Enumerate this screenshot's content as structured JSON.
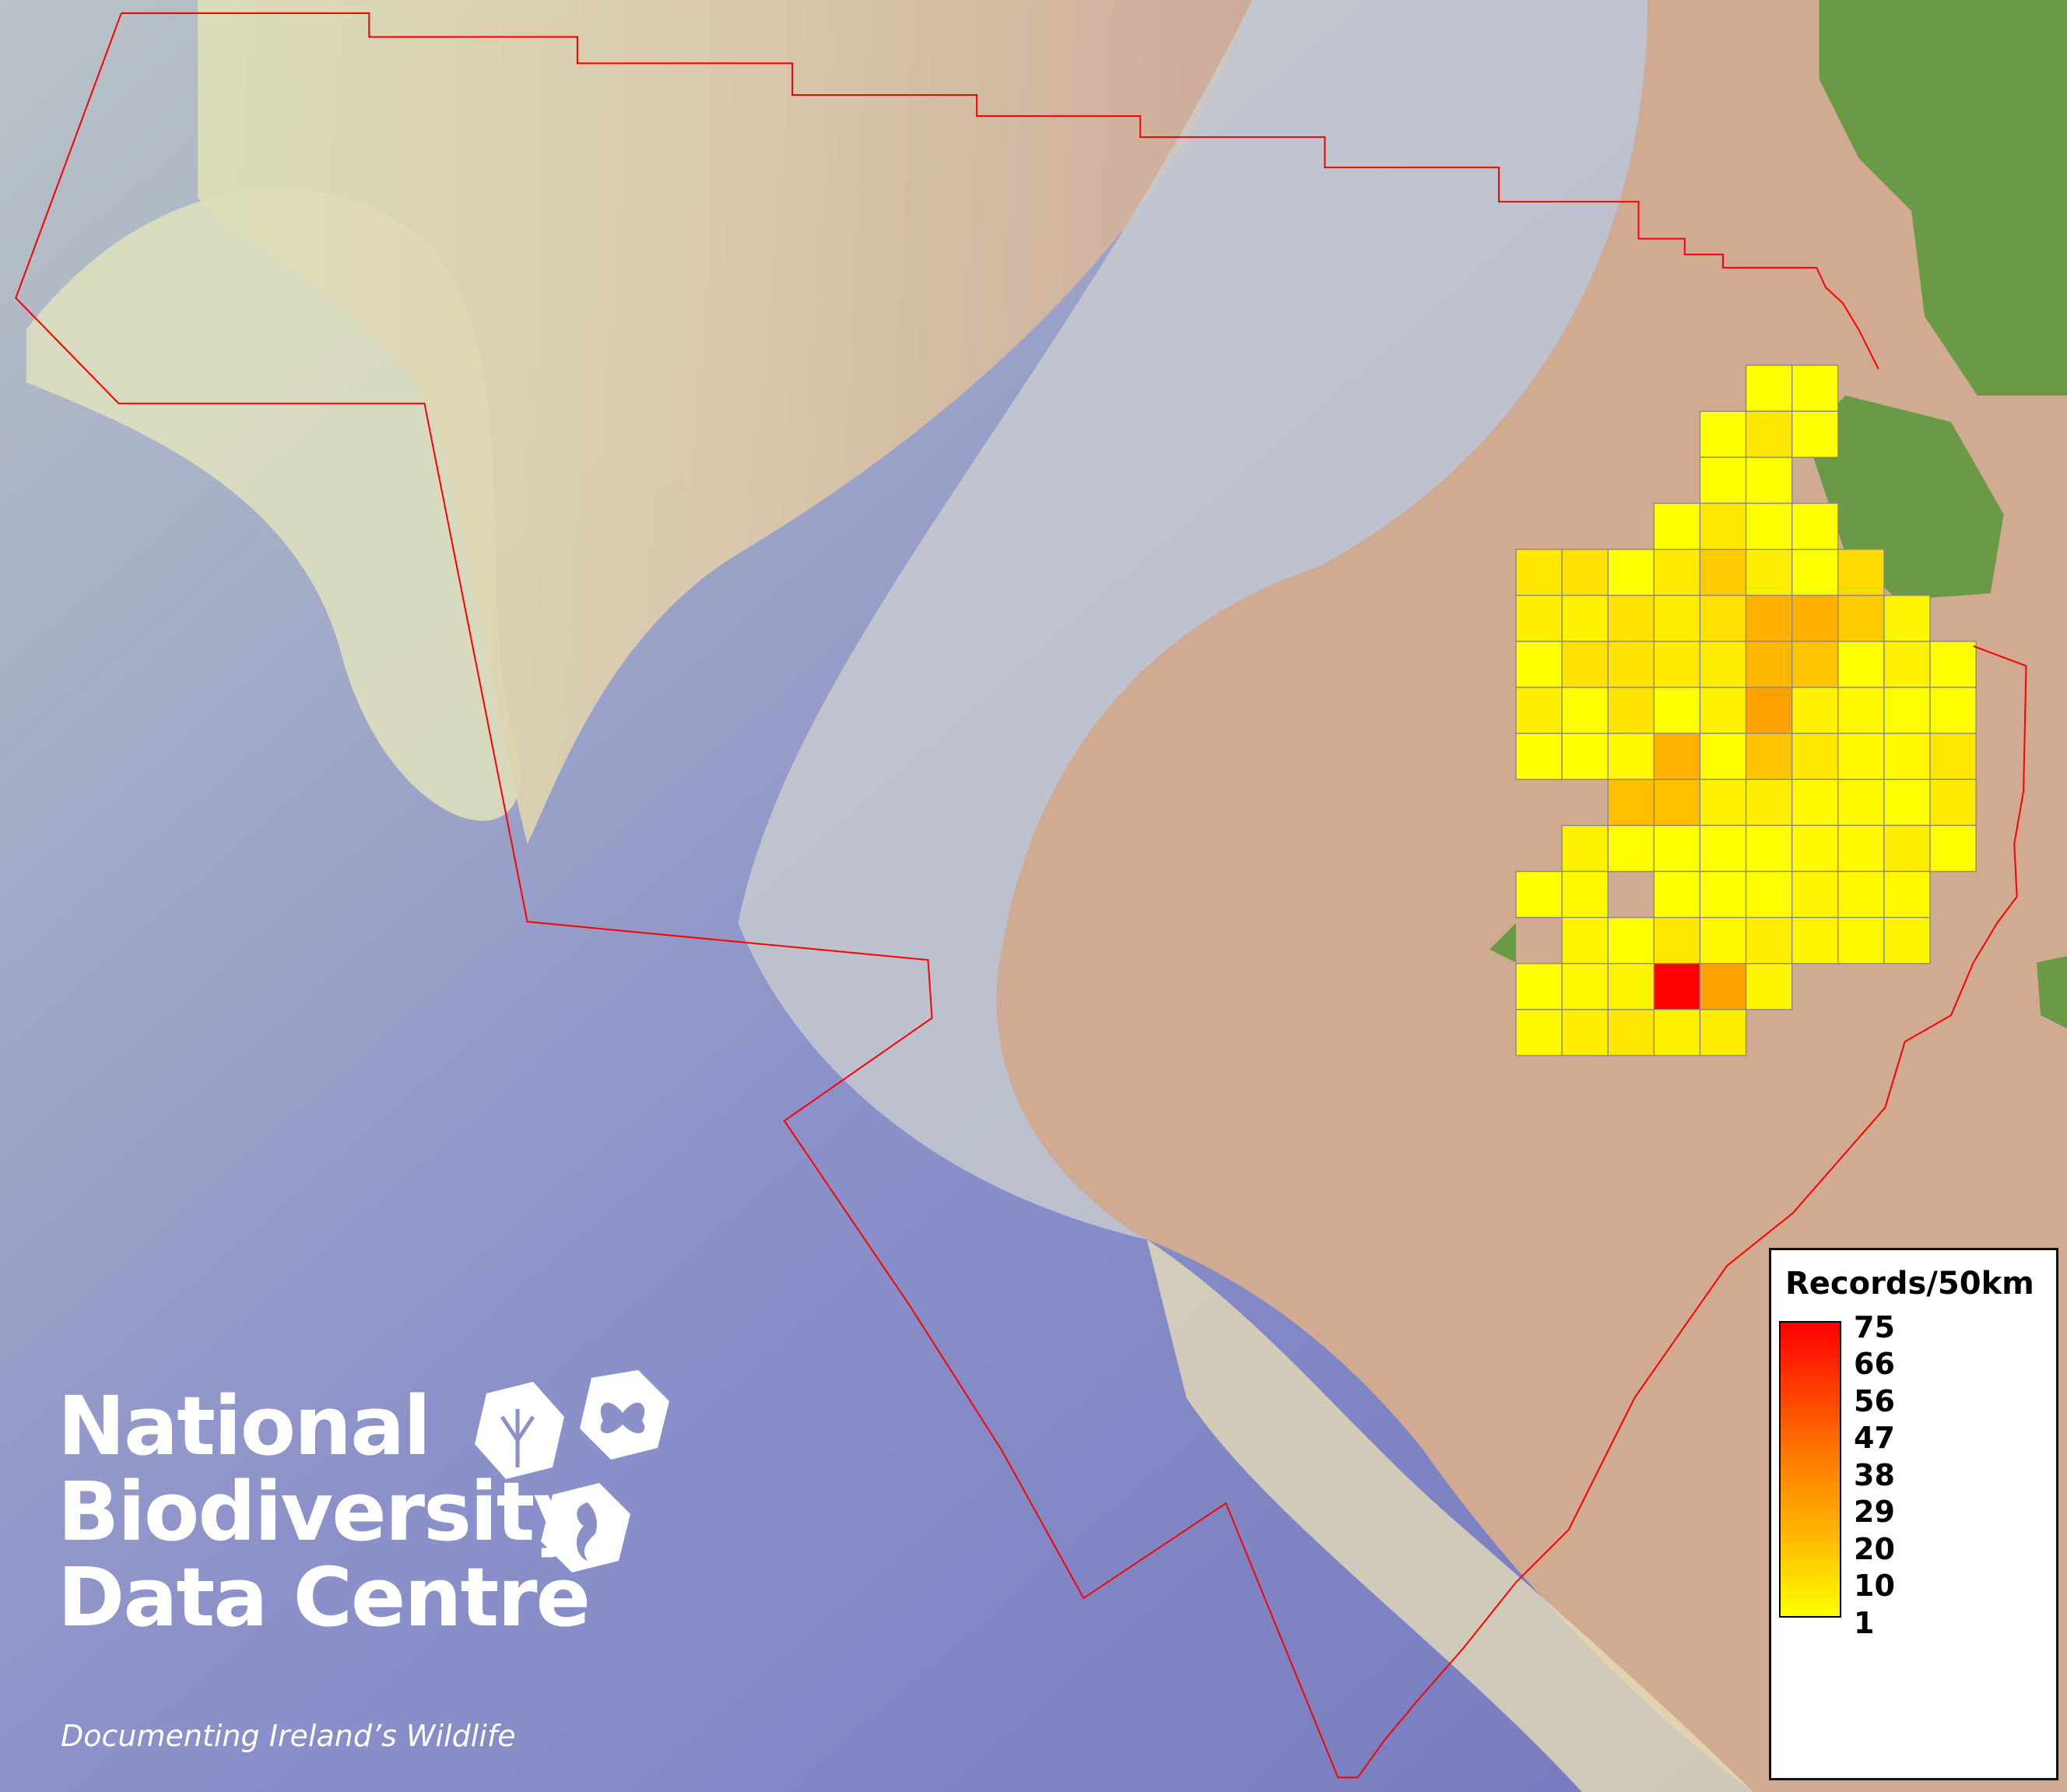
{
  "legend": {
    "title": "Records/50km",
    "ticks": [
      "75",
      "66",
      "56",
      "47",
      "38",
      "29",
      "20",
      "10",
      "1"
    ],
    "min": 1,
    "max": 75,
    "colors": {
      "low": "#ffff00",
      "high": "#ff0000"
    }
  },
  "logo": {
    "line1": "National",
    "line2": "Biodiversity",
    "line3": "Data Centre",
    "tagline": "Documenting Ireland’s Wildlife"
  },
  "boundary_color": "#ff0000",
  "grid": {
    "rows": [
      [
        null,
        null,
        null,
        null,
        null,
        1,
        1,
        null,
        null,
        null
      ],
      [
        null,
        null,
        null,
        null,
        1,
        8,
        1,
        null,
        null,
        null
      ],
      [
        null,
        null,
        null,
        null,
        1,
        1,
        null,
        null,
        null,
        null
      ],
      [
        null,
        null,
        null,
        1,
        8,
        1,
        1,
        null,
        null,
        null
      ],
      [
        8,
        10,
        1,
        7,
        16,
        6,
        1,
        12,
        null,
        null
      ],
      [
        6,
        5,
        9,
        6,
        10,
        24,
        24,
        16,
        4,
        null
      ],
      [
        1,
        10,
        9,
        7,
        6,
        22,
        18,
        2,
        5,
        1
      ],
      [
        6,
        1,
        9,
        1,
        5,
        28,
        5,
        3,
        2,
        2
      ],
      [
        1,
        1,
        3,
        23,
        2,
        18,
        8,
        3,
        3,
        8
      ],
      [
        null,
        null,
        20,
        20,
        5,
        6,
        3,
        3,
        1,
        7
      ],
      [
        null,
        5,
        2,
        1,
        1,
        1,
        3,
        3,
        6,
        1
      ],
      [
        1,
        3,
        null,
        1,
        1,
        2,
        4,
        3,
        3,
        null
      ],
      [
        null,
        4,
        1,
        8,
        3,
        6,
        4,
        3,
        4,
        null
      ],
      [
        1,
        3,
        4,
        75,
        28,
        4,
        null,
        null,
        null,
        null
      ],
      [
        3,
        6,
        8,
        5,
        6,
        null,
        null,
        null,
        null,
        null
      ]
    ]
  }
}
